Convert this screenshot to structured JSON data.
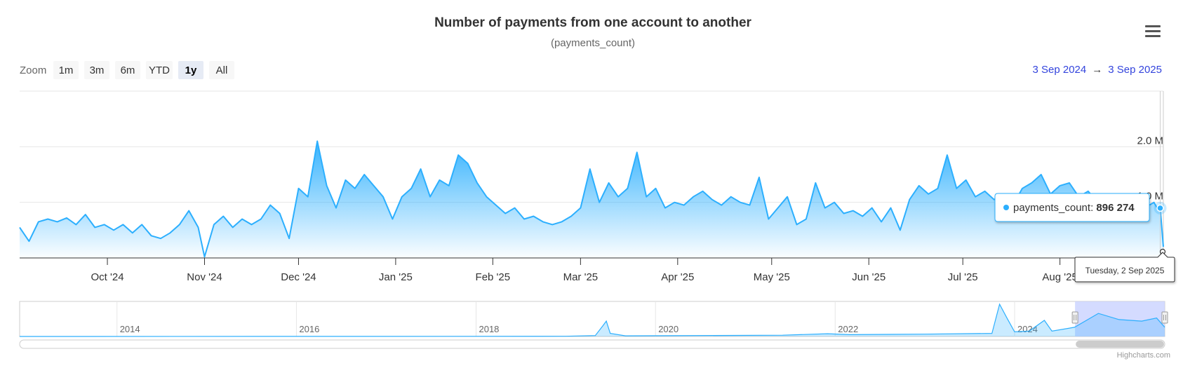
{
  "header": {
    "title": "Number of payments from one account to another",
    "subtitle": "(payments_count)"
  },
  "zoom": {
    "label": "Zoom",
    "buttons": [
      {
        "label": "1m",
        "active": false
      },
      {
        "label": "3m",
        "active": false
      },
      {
        "label": "6m",
        "active": false
      },
      {
        "label": "YTD",
        "active": false
      },
      {
        "label": "1y",
        "active": true
      },
      {
        "label": "All",
        "active": false
      }
    ]
  },
  "range": {
    "from": "3 Sep 2024",
    "arrow": "→",
    "to": "3 Sep 2025"
  },
  "tooltip": {
    "series": "payments_count: ",
    "value": "896 274",
    "date": "Tuesday, 2 Sep 2025"
  },
  "credits": "Highcharts.com",
  "colors": {
    "series": "#2caffe",
    "navigator_mask": "#c9d2ff",
    "range_text": "#3344dd"
  },
  "chart_data": {
    "type": "area",
    "series_name": "payments_count",
    "x_range": [
      "2024-09-03",
      "2025-09-03"
    ],
    "y_range": [
      0,
      3000000
    ],
    "y_ticks": [
      {
        "value": 1000000,
        "label": "1.0 M"
      },
      {
        "value": 2000000,
        "label": "2.0 M"
      }
    ],
    "x_ticks": [
      {
        "date": "2024-10-01",
        "label": "Oct '24"
      },
      {
        "date": "2024-11-01",
        "label": "Nov '24"
      },
      {
        "date": "2024-12-01",
        "label": "Dec '24"
      },
      {
        "date": "2025-01-01",
        "label": "Jan '25"
      },
      {
        "date": "2025-02-01",
        "label": "Feb '25"
      },
      {
        "date": "2025-03-01",
        "label": "Mar '25"
      },
      {
        "date": "2025-04-01",
        "label": "Apr '25"
      },
      {
        "date": "2025-05-01",
        "label": "May '25"
      },
      {
        "date": "2025-06-01",
        "label": "Jun '25"
      },
      {
        "date": "2025-07-01",
        "label": "Jul '25"
      },
      {
        "date": "2025-08-01",
        "label": "Aug '25"
      }
    ],
    "grid": true,
    "points": [
      [
        "2024-09-03",
        550000
      ],
      [
        "2024-09-06",
        300000
      ],
      [
        "2024-09-09",
        650000
      ],
      [
        "2024-09-12",
        700000
      ],
      [
        "2024-09-15",
        650000
      ],
      [
        "2024-09-18",
        720000
      ],
      [
        "2024-09-21",
        600000
      ],
      [
        "2024-09-24",
        780000
      ],
      [
        "2024-09-27",
        550000
      ],
      [
        "2024-09-30",
        600000
      ],
      [
        "2024-10-03",
        500000
      ],
      [
        "2024-10-06",
        600000
      ],
      [
        "2024-10-09",
        450000
      ],
      [
        "2024-10-12",
        600000
      ],
      [
        "2024-10-15",
        400000
      ],
      [
        "2024-10-18",
        350000
      ],
      [
        "2024-10-21",
        450000
      ],
      [
        "2024-10-24",
        600000
      ],
      [
        "2024-10-27",
        850000
      ],
      [
        "2024-10-30",
        550000
      ],
      [
        "2024-11-01",
        20000
      ],
      [
        "2024-11-04",
        600000
      ],
      [
        "2024-11-07",
        750000
      ],
      [
        "2024-11-10",
        550000
      ],
      [
        "2024-11-13",
        700000
      ],
      [
        "2024-11-16",
        600000
      ],
      [
        "2024-11-19",
        700000
      ],
      [
        "2024-11-22",
        950000
      ],
      [
        "2024-11-25",
        800000
      ],
      [
        "2024-11-28",
        350000
      ],
      [
        "2024-12-01",
        1250000
      ],
      [
        "2024-12-04",
        1100000
      ],
      [
        "2024-12-07",
        2100000
      ],
      [
        "2024-12-10",
        1300000
      ],
      [
        "2024-12-13",
        900000
      ],
      [
        "2024-12-16",
        1400000
      ],
      [
        "2024-12-19",
        1250000
      ],
      [
        "2024-12-22",
        1500000
      ],
      [
        "2024-12-25",
        1300000
      ],
      [
        "2024-12-28",
        1100000
      ],
      [
        "2024-12-31",
        700000
      ],
      [
        "2025-01-03",
        1100000
      ],
      [
        "2025-01-06",
        1250000
      ],
      [
        "2025-01-09",
        1600000
      ],
      [
        "2025-01-12",
        1100000
      ],
      [
        "2025-01-15",
        1400000
      ],
      [
        "2025-01-18",
        1300000
      ],
      [
        "2025-01-21",
        1850000
      ],
      [
        "2025-01-24",
        1700000
      ],
      [
        "2025-01-27",
        1350000
      ],
      [
        "2025-01-30",
        1100000
      ],
      [
        "2025-02-02",
        950000
      ],
      [
        "2025-02-05",
        800000
      ],
      [
        "2025-02-08",
        900000
      ],
      [
        "2025-02-11",
        700000
      ],
      [
        "2025-02-14",
        750000
      ],
      [
        "2025-02-17",
        650000
      ],
      [
        "2025-02-20",
        600000
      ],
      [
        "2025-02-23",
        650000
      ],
      [
        "2025-02-26",
        750000
      ],
      [
        "2025-03-01",
        900000
      ],
      [
        "2025-03-04",
        1600000
      ],
      [
        "2025-03-07",
        1000000
      ],
      [
        "2025-03-10",
        1350000
      ],
      [
        "2025-03-13",
        1100000
      ],
      [
        "2025-03-16",
        1250000
      ],
      [
        "2025-03-19",
        1900000
      ],
      [
        "2025-03-22",
        1100000
      ],
      [
        "2025-03-25",
        1250000
      ],
      [
        "2025-03-28",
        900000
      ],
      [
        "2025-03-31",
        1000000
      ],
      [
        "2025-04-03",
        950000
      ],
      [
        "2025-04-06",
        1100000
      ],
      [
        "2025-04-09",
        1200000
      ],
      [
        "2025-04-12",
        1050000
      ],
      [
        "2025-04-15",
        950000
      ],
      [
        "2025-04-18",
        1100000
      ],
      [
        "2025-04-21",
        1000000
      ],
      [
        "2025-04-24",
        950000
      ],
      [
        "2025-04-27",
        1450000
      ],
      [
        "2025-04-30",
        700000
      ],
      [
        "2025-05-03",
        900000
      ],
      [
        "2025-05-06",
        1100000
      ],
      [
        "2025-05-09",
        600000
      ],
      [
        "2025-05-12",
        700000
      ],
      [
        "2025-05-15",
        1350000
      ],
      [
        "2025-05-18",
        900000
      ],
      [
        "2025-05-21",
        1000000
      ],
      [
        "2025-05-24",
        800000
      ],
      [
        "2025-05-27",
        850000
      ],
      [
        "2025-05-30",
        750000
      ],
      [
        "2025-06-02",
        900000
      ],
      [
        "2025-06-05",
        650000
      ],
      [
        "2025-06-08",
        900000
      ],
      [
        "2025-06-11",
        500000
      ],
      [
        "2025-06-14",
        1050000
      ],
      [
        "2025-06-17",
        1300000
      ],
      [
        "2025-06-20",
        1150000
      ],
      [
        "2025-06-23",
        1250000
      ],
      [
        "2025-06-26",
        1850000
      ],
      [
        "2025-06-29",
        1250000
      ],
      [
        "2025-07-02",
        1400000
      ],
      [
        "2025-07-05",
        1100000
      ],
      [
        "2025-07-08",
        1200000
      ],
      [
        "2025-07-11",
        1050000
      ],
      [
        "2025-07-14",
        1150000
      ],
      [
        "2025-07-17",
        950000
      ],
      [
        "2025-07-20",
        1250000
      ],
      [
        "2025-07-23",
        1350000
      ],
      [
        "2025-07-26",
        1500000
      ],
      [
        "2025-07-29",
        1150000
      ],
      [
        "2025-08-01",
        1300000
      ],
      [
        "2025-08-04",
        1350000
      ],
      [
        "2025-08-07",
        1100000
      ],
      [
        "2025-08-10",
        1200000
      ],
      [
        "2025-08-13",
        1000000
      ],
      [
        "2025-08-16",
        1100000
      ],
      [
        "2025-08-19",
        1000000
      ],
      [
        "2025-08-22",
        950000
      ],
      [
        "2025-08-25",
        1050000
      ],
      [
        "2025-08-28",
        900000
      ],
      [
        "2025-08-31",
        1000000
      ],
      [
        "2025-09-01",
        900000
      ],
      [
        "2025-09-02",
        896274
      ],
      [
        "2025-09-03",
        200000
      ]
    ],
    "navigator": {
      "x_range": [
        "2012-12-01",
        "2025-09-03"
      ],
      "labels": [
        "2014",
        "2016",
        "2018",
        "2020",
        "2022",
        "2024"
      ],
      "selected_range": [
        "2024-09-03",
        "2025-09-03"
      ],
      "points": [
        [
          "2012-12-01",
          2000
        ],
        [
          "2016-01-01",
          5000
        ],
        [
          "2019-01-01",
          15000
        ],
        [
          "2019-05-01",
          60000
        ],
        [
          "2019-06-01",
          700000
        ],
        [
          "2019-06-15",
          1000000
        ],
        [
          "2019-07-01",
          200000
        ],
        [
          "2019-09-01",
          40000
        ],
        [
          "2020-06-01",
          60000
        ],
        [
          "2021-06-01",
          80000
        ],
        [
          "2021-12-01",
          180000
        ],
        [
          "2022-03-01",
          120000
        ],
        [
          "2023-01-01",
          150000
        ],
        [
          "2023-10-01",
          200000
        ],
        [
          "2023-11-01",
          2100000
        ],
        [
          "2023-12-01",
          1200000
        ],
        [
          "2024-01-01",
          300000
        ],
        [
          "2024-03-01",
          350000
        ],
        [
          "2024-05-01",
          1050000
        ],
        [
          "2024-06-01",
          350000
        ],
        [
          "2024-09-01",
          600000
        ],
        [
          "2024-12-07",
          1500000
        ],
        [
          "2025-03-01",
          1100000
        ],
        [
          "2025-06-01",
          1000000
        ],
        [
          "2025-08-01",
          1200000
        ],
        [
          "2025-09-03",
          600000
        ]
      ],
      "y_max": 2100000
    }
  }
}
